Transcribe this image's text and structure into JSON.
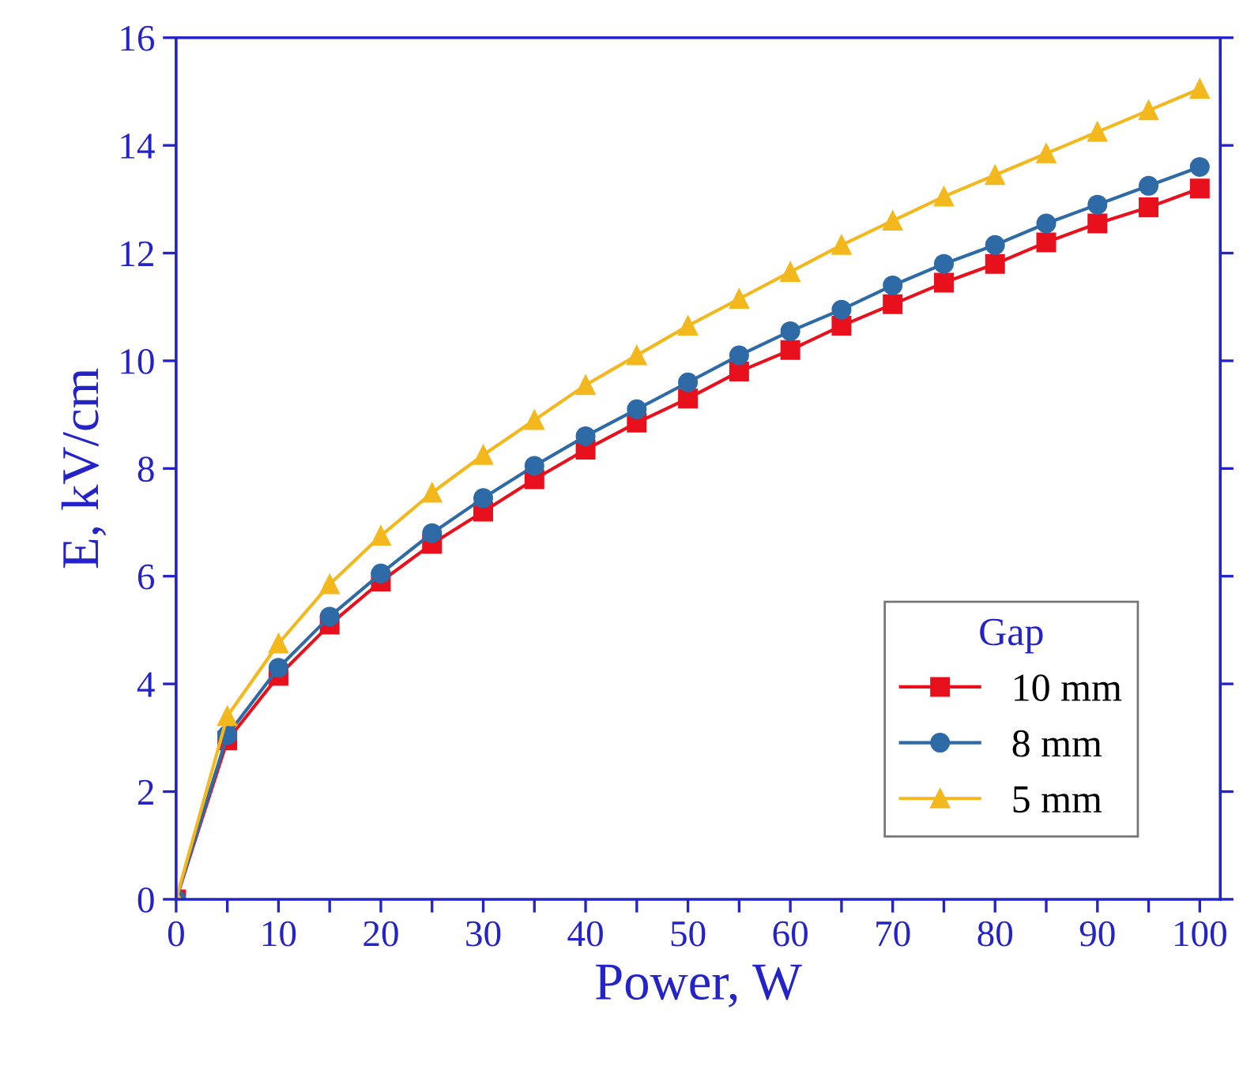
{
  "chart_data": {
    "type": "line",
    "xlabel": "Power, W",
    "ylabel": "E, kV/cm",
    "legend_title": "Gap",
    "legend": "bottom right",
    "x": [
      0,
      5,
      10,
      15,
      20,
      25,
      30,
      35,
      40,
      45,
      50,
      55,
      60,
      65,
      70,
      75,
      80,
      85,
      90,
      95,
      100
    ],
    "series": [
      {
        "name": "10 mm",
        "color": "#e8101c",
        "marker": "square",
        "values": [
          0,
          2.95,
          4.15,
          5.1,
          5.9,
          6.6,
          7.2,
          7.8,
          8.35,
          8.85,
          9.3,
          9.8,
          10.2,
          10.65,
          11.05,
          11.45,
          11.8,
          12.2,
          12.55,
          12.85,
          13.2
        ]
      },
      {
        "name": "8 mm",
        "color": "#2e6aa6",
        "marker": "circle",
        "values": [
          0,
          3.05,
          4.3,
          5.25,
          6.05,
          6.8,
          7.45,
          8.05,
          8.6,
          9.1,
          9.6,
          10.1,
          10.55,
          10.95,
          11.4,
          11.8,
          12.15,
          12.55,
          12.9,
          13.25,
          13.6
        ]
      },
      {
        "name": "5 mm",
        "color": "#f2b81d",
        "marker": "triangle",
        "values": [
          0,
          3.4,
          4.75,
          5.85,
          6.75,
          7.55,
          8.25,
          8.9,
          9.55,
          10.1,
          10.65,
          11.15,
          11.65,
          12.15,
          12.6,
          13.05,
          13.45,
          13.85,
          14.25,
          14.65,
          15.05
        ]
      }
    ],
    "xlim": [
      0,
      102
    ],
    "ylim": [
      0,
      16
    ],
    "xticks": [
      0,
      {
        "value": 5,
        "label": null
      },
      10,
      {
        "value": 15,
        "label": null
      },
      20,
      {
        "value": 25,
        "label": null
      },
      30,
      {
        "value": 35,
        "label": null
      },
      40,
      {
        "value": 45,
        "label": null
      },
      50,
      {
        "value": 55,
        "label": null
      },
      60,
      {
        "value": 65,
        "label": null
      },
      70,
      {
        "value": 75,
        "label": null
      },
      80,
      {
        "value": 85,
        "label": null
      },
      90,
      {
        "value": 95,
        "label": null
      },
      100
    ],
    "yticks": [
      0,
      2,
      4,
      6,
      8,
      10,
      12,
      14,
      16
    ],
    "grid": false,
    "line_style": "solid"
  }
}
